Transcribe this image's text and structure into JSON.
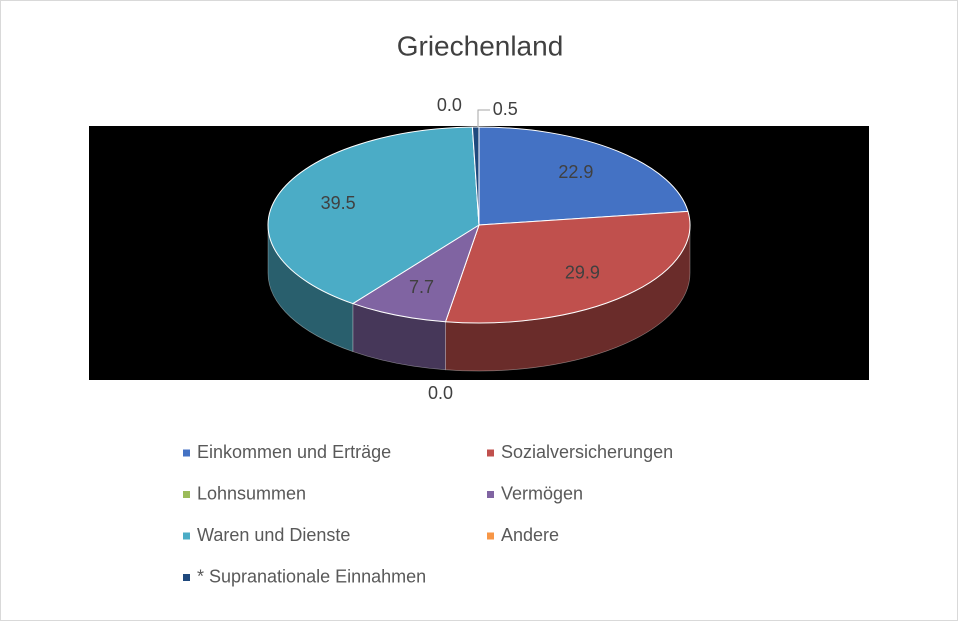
{
  "chart_data": {
    "type": "pie3d",
    "title": "Griechenland",
    "categories": [
      "Einkommen und Erträge",
      "Sozialversicherungen",
      "Lohnsummen",
      "Vermögen",
      "Waren und Dienste",
      "Andere",
      "* Supranationale Einnahmen"
    ],
    "values": [
      22.9,
      29.9,
      0.0,
      7.7,
      39.5,
      0.0,
      0.5
    ],
    "value_labels": [
      "22.9",
      "29.9",
      "0.0",
      "7.7",
      "39.5",
      "0.0",
      "0.5"
    ],
    "colors": [
      "#4472c4",
      "#c0504d",
      "#9bbb59",
      "#8064a2",
      "#4bacc6",
      "#f79646",
      "#1f497d"
    ],
    "legend": "bottom"
  }
}
